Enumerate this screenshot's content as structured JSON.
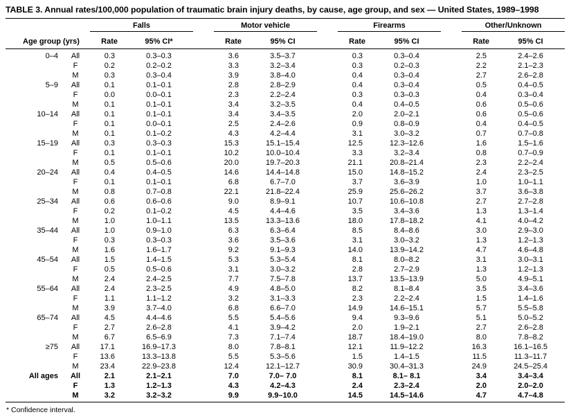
{
  "title": "TABLE 3. Annual rates/100,000 population of traumatic brain injury deaths, by cause, age group, and sex — United States, 1989–1998",
  "footnote": "* Confidence interval.",
  "table": {
    "age_col_header": "Age group (yrs)",
    "groups": [
      {
        "label": "Falls",
        "rate_header": "Rate",
        "ci_header": "95% CI*"
      },
      {
        "label": "Motor vehicle",
        "rate_header": "Rate",
        "ci_header": "95% CI"
      },
      {
        "label": "Firearms",
        "rate_header": "Rate",
        "ci_header": "95% CI"
      },
      {
        "label": "Other/Unknown",
        "rate_header": "Rate",
        "ci_header": "95% CI"
      }
    ],
    "rows": [
      {
        "age": "0–4",
        "sex": "All",
        "bold": false,
        "values": [
          "0.3",
          "0.3–0.3",
          "3.6",
          "3.5–3.7",
          "0.3",
          "0.3–0.4",
          "2.5",
          "2.4–2.6"
        ]
      },
      {
        "age": "",
        "sex": "F",
        "bold": false,
        "values": [
          "0.2",
          "0.2–0.2",
          "3.3",
          "3.2–3.4",
          "0.3",
          "0.2–0.3",
          "2.2",
          "2.1–2.3"
        ]
      },
      {
        "age": "",
        "sex": "M",
        "bold": false,
        "values": [
          "0.3",
          "0.3–0.4",
          "3.9",
          "3.8–4.0",
          "0.4",
          "0.3–0.4",
          "2.7",
          "2.6–2.8"
        ]
      },
      {
        "age": "5–9",
        "sex": "All",
        "bold": false,
        "values": [
          "0.1",
          "0.1–0.1",
          "2.8",
          "2.8–2.9",
          "0.4",
          "0.3–0.4",
          "0.5",
          "0.4–0.5"
        ]
      },
      {
        "age": "",
        "sex": "F",
        "bold": false,
        "values": [
          "0.0",
          "0.0–0.1",
          "2.3",
          "2.2–2.4",
          "0.3",
          "0.3–0.3",
          "0.4",
          "0.3–0.4"
        ]
      },
      {
        "age": "",
        "sex": "M",
        "bold": false,
        "values": [
          "0.1",
          "0.1–0.1",
          "3.4",
          "3.2–3.5",
          "0.4",
          "0.4–0.5",
          "0.6",
          "0.5–0.6"
        ]
      },
      {
        "age": "10–14",
        "sex": "All",
        "bold": false,
        "values": [
          "0.1",
          "0.1–0.1",
          "3.4",
          "3.4–3.5",
          "2.0",
          "2.0–2.1",
          "0.6",
          "0.5–0.6"
        ]
      },
      {
        "age": "",
        "sex": "F",
        "bold": false,
        "values": [
          "0.1",
          "0.0–0.1",
          "2.5",
          "2.4–2.6",
          "0.9",
          "0.8–0.9",
          "0.4",
          "0.4–0.5"
        ]
      },
      {
        "age": "",
        "sex": "M",
        "bold": false,
        "values": [
          "0.1",
          "0.1–0.2",
          "4.3",
          "4.2–4.4",
          "3.1",
          "3.0–3.2",
          "0.7",
          "0.7–0.8"
        ]
      },
      {
        "age": "15–19",
        "sex": "All",
        "bold": false,
        "values": [
          "0.3",
          "0.3–0.3",
          "15.3",
          "15.1–15.4",
          "12.5",
          "12.3–12.6",
          "1.6",
          "1.5–1.6"
        ]
      },
      {
        "age": "",
        "sex": "F",
        "bold": false,
        "values": [
          "0.1",
          "0.1–0.1",
          "10.2",
          "10.0–10.4",
          "3.3",
          "3.2–3.4",
          "0.8",
          "0.7–0.9"
        ]
      },
      {
        "age": "",
        "sex": "M",
        "bold": false,
        "values": [
          "0.5",
          "0.5–0.6",
          "20.0",
          "19.7–20.3",
          "21.1",
          "20.8–21.4",
          "2.3",
          "2.2–2.4"
        ]
      },
      {
        "age": "20–24",
        "sex": "All",
        "bold": false,
        "values": [
          "0.4",
          "0.4–0.5",
          "14.6",
          "14.4–14.8",
          "15.0",
          "14.8–15.2",
          "2.4",
          "2.3–2.5"
        ]
      },
      {
        "age": "",
        "sex": "F",
        "bold": false,
        "values": [
          "0.1",
          "0.1–0.1",
          "6.8",
          "6.7–7.0",
          "3.7",
          "3.6–3.9",
          "1.0",
          "1.0–1.1"
        ]
      },
      {
        "age": "",
        "sex": "M",
        "bold": false,
        "values": [
          "0.8",
          "0.7–0.8",
          "22.1",
          "21.8–22.4",
          "25.9",
          "25.6–26.2",
          "3.7",
          "3.6–3.8"
        ]
      },
      {
        "age": "25–34",
        "sex": "All",
        "bold": false,
        "values": [
          "0.6",
          "0.6–0.6",
          "9.0",
          "8.9–9.1",
          "10.7",
          "10.6–10.8",
          "2.7",
          "2.7–2.8"
        ]
      },
      {
        "age": "",
        "sex": "F",
        "bold": false,
        "values": [
          "0.2",
          "0.1–0.2",
          "4.5",
          "4.4–4.6",
          "3.5",
          "3.4–3.6",
          "1.3",
          "1.3–1.4"
        ]
      },
      {
        "age": "",
        "sex": "M",
        "bold": false,
        "values": [
          "1.0",
          "1.0–1.1",
          "13.5",
          "13.3–13.6",
          "18.0",
          "17.8–18.2",
          "4.1",
          "4.0–4.2"
        ]
      },
      {
        "age": "35–44",
        "sex": "All",
        "bold": false,
        "values": [
          "1.0",
          "0.9–1.0",
          "6.3",
          "6.3–6.4",
          "8.5",
          "8.4–8.6",
          "3.0",
          "2.9–3.0"
        ]
      },
      {
        "age": "",
        "sex": "F",
        "bold": false,
        "values": [
          "0.3",
          "0.3–0.3",
          "3.6",
          "3.5–3.6",
          "3.1",
          "3.0–3.2",
          "1.3",
          "1.2–1.3"
        ]
      },
      {
        "age": "",
        "sex": "M",
        "bold": false,
        "values": [
          "1.6",
          "1.6–1.7",
          "9.2",
          "9.1–9.3",
          "14.0",
          "13.9–14.2",
          "4.7",
          "4.6–4.8"
        ]
      },
      {
        "age": "45–54",
        "sex": "All",
        "bold": false,
        "values": [
          "1.5",
          "1.4–1.5",
          "5.3",
          "5.3–5.4",
          "8.1",
          "8.0–8.2",
          "3.1",
          "3.0–3.1"
        ]
      },
      {
        "age": "",
        "sex": "F",
        "bold": false,
        "values": [
          "0.5",
          "0.5–0.6",
          "3.1",
          "3.0–3.2",
          "2.8",
          "2.7–2.9",
          "1.3",
          "1.2–1.3"
        ]
      },
      {
        "age": "",
        "sex": "M",
        "bold": false,
        "values": [
          "2.4",
          "2.4–2.5",
          "7.7",
          "7.5–7.8",
          "13.7",
          "13.5–13.9",
          "5.0",
          "4.9–5.1"
        ]
      },
      {
        "age": "55–64",
        "sex": "All",
        "bold": false,
        "values": [
          "2.4",
          "2.3–2.5",
          "4.9",
          "4.8–5.0",
          "8.2",
          "8.1–8.4",
          "3.5",
          "3.4–3.6"
        ]
      },
      {
        "age": "",
        "sex": "F",
        "bold": false,
        "values": [
          "1.1",
          "1.1–1.2",
          "3.2",
          "3.1–3.3",
          "2.3",
          "2.2–2.4",
          "1.5",
          "1.4–1.6"
        ]
      },
      {
        "age": "",
        "sex": "M",
        "bold": false,
        "values": [
          "3.9",
          "3.7–4.0",
          "6.8",
          "6.6–7.0",
          "14.9",
          "14.6–15.1",
          "5.7",
          "5.5–5.8"
        ]
      },
      {
        "age": "65–74",
        "sex": "All",
        "bold": false,
        "values": [
          "4.5",
          "4.4–4.6",
          "5.5",
          "5.4–5.6",
          "9.4",
          "9.3–9.6",
          "5.1",
          "5.0–5.2"
        ]
      },
      {
        "age": "",
        "sex": "F",
        "bold": false,
        "values": [
          "2.7",
          "2.6–2.8",
          "4.1",
          "3.9–4.2",
          "2.0",
          "1.9–2.1",
          "2.7",
          "2.6–2.8"
        ]
      },
      {
        "age": "",
        "sex": "M",
        "bold": false,
        "values": [
          "6.7",
          "6.5–6.9",
          "7.3",
          "7.1–7.4",
          "18.7",
          "18.4–19.0",
          "8.0",
          "7.8–8.2"
        ]
      },
      {
        "age": "≥75",
        "sex": "All",
        "bold": false,
        "values": [
          "17.1",
          "16.9–17.3",
          "8.0",
          "7.8–8.1",
          "12.1",
          "11.9–12.2",
          "16.3",
          "16.1–16.5"
        ]
      },
      {
        "age": "",
        "sex": "F",
        "bold": false,
        "values": [
          "13.6",
          "13.3–13.8",
          "5.5",
          "5.3–5.6",
          "1.5",
          "1.4–1.5",
          "11.5",
          "11.3–11.7"
        ]
      },
      {
        "age": "",
        "sex": "M",
        "bold": false,
        "values": [
          "23.4",
          "22.9–23.8",
          "12.4",
          "12.1–12.7",
          "30.9",
          "30.4–31.3",
          "24.9",
          "24.5–25.4"
        ]
      },
      {
        "age": "All ages",
        "sex": "All",
        "bold": true,
        "values": [
          "2.1",
          "2.1–2.1",
          "7.0",
          "7.0– 7.0",
          "8.1",
          "8.1– 8.1",
          "3.4",
          "3.4–3.4"
        ]
      },
      {
        "age": "",
        "sex": "F",
        "bold": true,
        "values": [
          "1.3",
          "1.2–1.3",
          "4.3",
          "4.2–4.3",
          "2.4",
          "2.3–2.4",
          "2.0",
          "2.0–2.0"
        ]
      },
      {
        "age": "",
        "sex": "M",
        "bold": true,
        "values": [
          "3.2",
          "3.2–3.2",
          "9.9",
          "9.9–10.0",
          "14.5",
          "14.5–14.6",
          "4.7",
          "4.7–4.8"
        ]
      }
    ]
  }
}
